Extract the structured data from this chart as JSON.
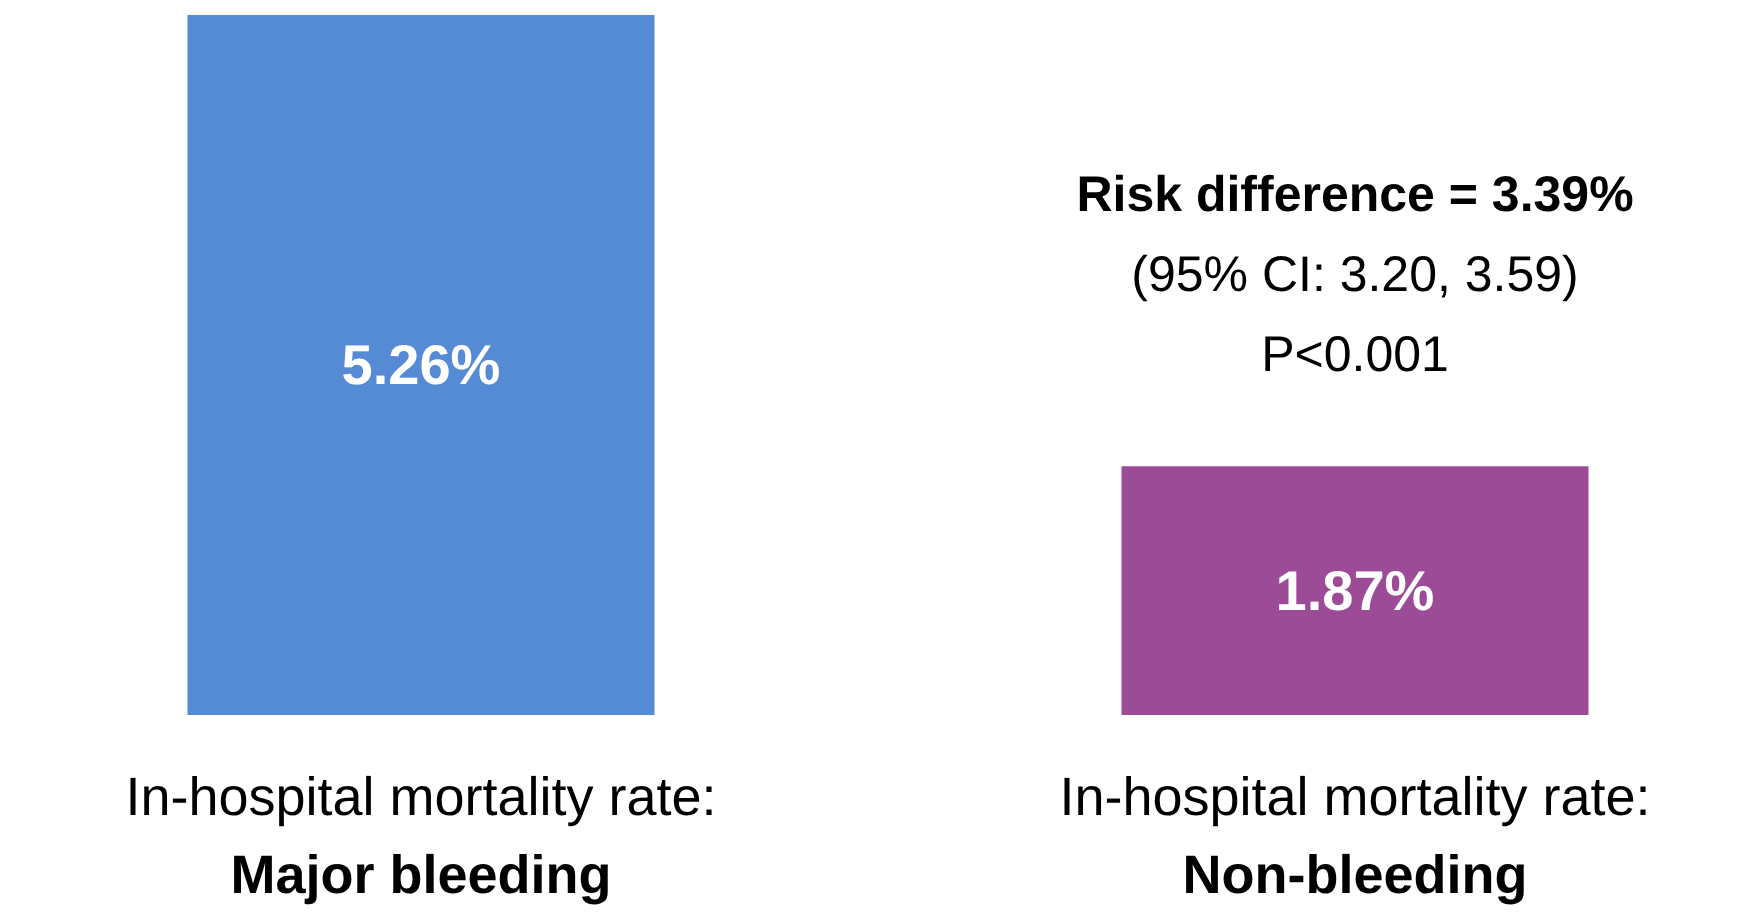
{
  "chart_data": {
    "type": "bar",
    "categories": [
      "In-hospital mortality rate:\nMajor bleeding",
      "In-hospital mortality rate:\nNon-bleeding"
    ],
    "values": [
      5.26,
      1.87
    ],
    "value_labels": [
      "5.26%",
      "1.87%"
    ],
    "colors": [
      "#558ad4",
      "#9c4c96"
    ],
    "annotations": [
      "Risk difference = 3.39%",
      "(95% CI: 3.20, 3.59)",
      "P<0.001"
    ],
    "grid": false
  }
}
